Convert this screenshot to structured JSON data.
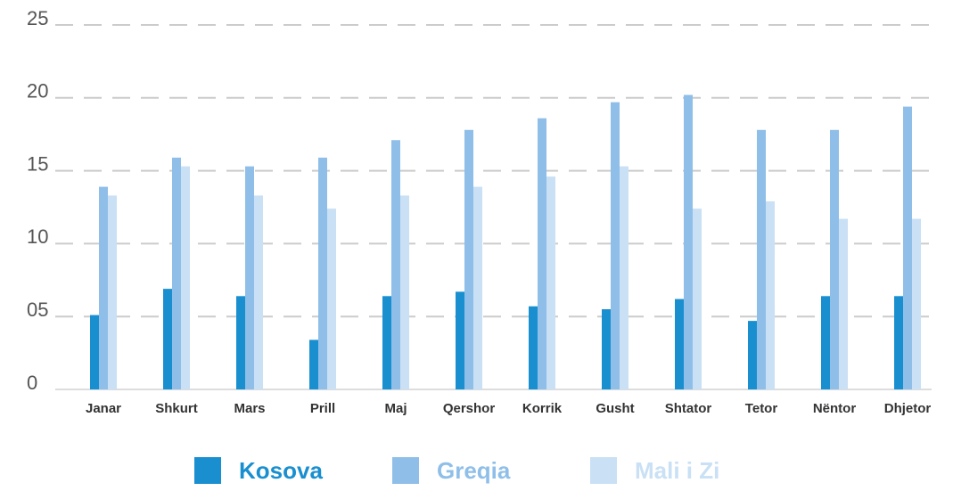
{
  "chart_data": {
    "type": "bar",
    "categories": [
      "Janar",
      "Shkurt",
      "Mars",
      "Prill",
      "Maj",
      "Qershor",
      "Korrik",
      "Gusht",
      "Shtator",
      "Tetor",
      "Nëntor",
      "Dhjetor"
    ],
    "series": [
      {
        "name": "Kosova",
        "color": "#1a8fd0",
        "values": [
          5.1,
          6.9,
          6.4,
          3.4,
          6.4,
          6.7,
          5.7,
          5.5,
          6.2,
          4.7,
          6.4,
          6.4
        ]
      },
      {
        "name": "Greqia",
        "color": "#8fbfe8",
        "values": [
          13.9,
          15.9,
          15.3,
          15.9,
          17.1,
          17.8,
          18.6,
          19.7,
          20.2,
          17.8,
          17.8,
          19.4
        ]
      },
      {
        "name": "Mali i Zi",
        "color": "#c9e0f5",
        "values": [
          13.3,
          15.3,
          13.3,
          12.4,
          13.3,
          13.9,
          14.6,
          15.3,
          12.4,
          12.9,
          11.7,
          11.7
        ]
      }
    ],
    "ylim": [
      0,
      25
    ],
    "yticks": [
      0,
      {
        "value": 5,
        "label": "05"
      },
      10,
      15,
      20,
      25
    ],
    "grid": true,
    "legend": "bottom"
  }
}
